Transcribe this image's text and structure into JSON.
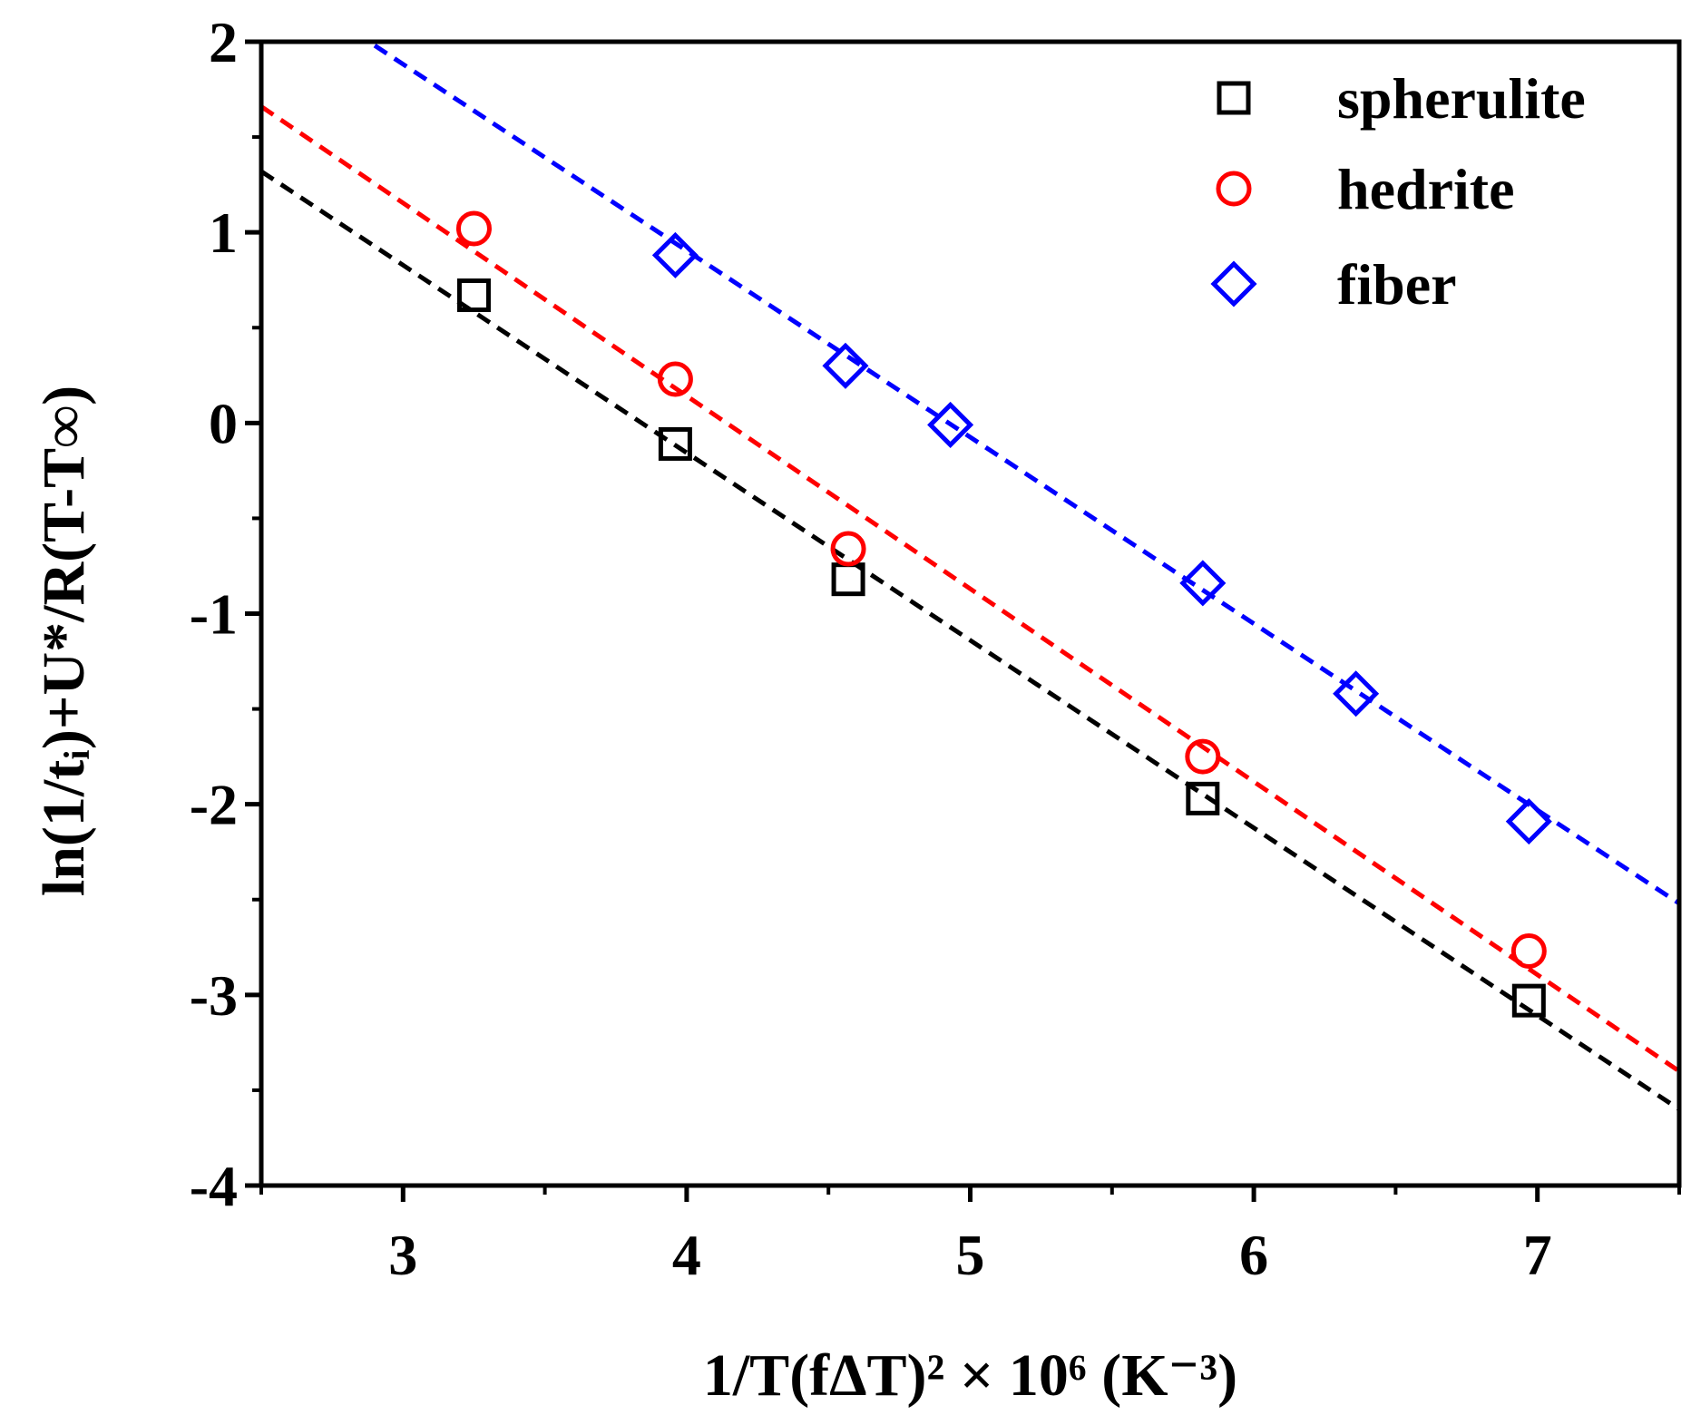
{
  "chart_data": {
    "type": "scatter",
    "xlabel": "1/T(fΔT)² × 10⁶ (K⁻³)",
    "ylabel": "ln(1/tᵢ)+U*/R(T-T∞)",
    "xlim": [
      2.5,
      7.5
    ],
    "ylim": [
      -4,
      2
    ],
    "x_ticks": [
      3,
      4,
      5,
      6,
      7
    ],
    "y_ticks": [
      -4,
      -3,
      -2,
      -1,
      0,
      1,
      2
    ],
    "x_tick_labels": [
      "3",
      "4",
      "5",
      "6",
      "7"
    ],
    "y_tick_labels": [
      "-4",
      "-3",
      "-2",
      "-1",
      "0",
      "1",
      "2"
    ],
    "x_minor_step": 0.5,
    "y_minor_step": 0.5,
    "grid": false,
    "legend_position": "top-right",
    "series": [
      {
        "name": "spherulite",
        "marker": "square",
        "color": "#000000",
        "x": [
          3.25,
          3.96,
          4.57,
          5.82,
          6.97
        ],
        "y": [
          0.67,
          -0.11,
          -0.82,
          -1.97,
          -3.03
        ],
        "fit": {
          "x": [
            2.5,
            7.5
          ],
          "y": [
            1.32,
            -3.6
          ]
        }
      },
      {
        "name": "hedrite",
        "marker": "circle",
        "color": "#ff0000",
        "x": [
          3.25,
          3.96,
          4.57,
          5.82,
          6.97
        ],
        "y": [
          1.02,
          0.23,
          -0.66,
          -1.75,
          -2.77
        ],
        "fit": {
          "x": [
            2.5,
            7.5
          ],
          "y": [
            1.66,
            -3.4
          ]
        }
      },
      {
        "name": "fiber",
        "marker": "diamond",
        "color": "#0000ff",
        "x": [
          3.96,
          4.56,
          4.93,
          5.82,
          6.36,
          6.97
        ],
        "y": [
          0.88,
          0.3,
          -0.01,
          -0.84,
          -1.42,
          -2.09
        ],
        "fit": {
          "x": [
            2.9,
            7.5
          ],
          "y": [
            1.98,
            -2.52
          ]
        }
      }
    ]
  }
}
